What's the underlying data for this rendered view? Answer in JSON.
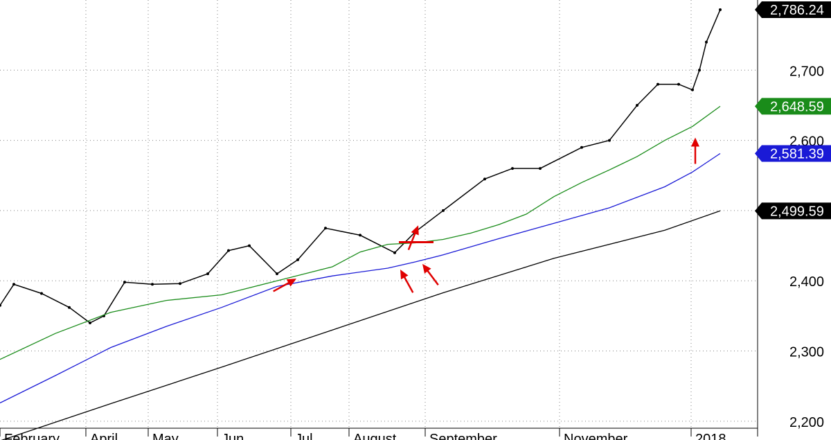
{
  "chart_data": {
    "type": "line",
    "title": "",
    "xlabel": "",
    "ylabel": "",
    "ylim": [
      2190,
      2800
    ],
    "y_ticks": [
      "2,200",
      "2,300",
      "2,400",
      "2,500",
      "2,600",
      "2,700"
    ],
    "y_tick_values": [
      2200,
      2300,
      2400,
      2500,
      2600,
      2700
    ],
    "x_month_labels": [
      "February",
      "April",
      "May",
      "Jun",
      "Jul",
      "August",
      "September",
      "November",
      "2018"
    ],
    "x_month_label_index": [
      0,
      62,
      107,
      157,
      210,
      252,
      307,
      404,
      499
    ],
    "month_separators_index": [
      62,
      107,
      157,
      210,
      252,
      307,
      404,
      499
    ],
    "grid": true,
    "colors": {
      "price_line": "#000000",
      "ma_green": "#1a8c1a",
      "ma_blue": "#1a1ad6",
      "ma_black": "#000000",
      "annotation": "#e00000",
      "grid": "#808080"
    },
    "last_value_labels": [
      {
        "text": "2,786.24",
        "value": 2786.24,
        "bg": "#000000"
      },
      {
        "text": "2,648.59",
        "value": 2648.59,
        "bg": "#1a8c1a"
      },
      {
        "text": "2,581.39",
        "value": 2581.39,
        "bg": "#1a1ad6"
      },
      {
        "text": "2,499.59",
        "value": 2499.59,
        "bg": "#000000"
      }
    ],
    "series": [
      {
        "key": "price",
        "x": [
          0,
          10,
          30,
          50,
          65,
          75,
          90,
          110,
          130,
          150,
          165,
          180,
          200,
          215,
          235,
          260,
          285,
          300,
          320,
          350,
          370,
          390,
          420,
          440,
          460,
          475,
          490,
          500,
          505,
          510,
          520
        ],
        "values": [
          2365,
          2395,
          2382,
          2362,
          2340,
          2350,
          2398,
          2395,
          2396,
          2410,
          2443,
          2450,
          2410,
          2430,
          2475,
          2465,
          2440,
          2470,
          2500,
          2545,
          2560,
          2560,
          2590,
          2600,
          2650,
          2680,
          2680,
          2672,
          2700,
          2740,
          2786.24
        ]
      },
      {
        "key": "ma_green",
        "x": [
          0,
          40,
          80,
          120,
          160,
          200,
          240,
          260,
          280,
          300,
          320,
          340,
          360,
          380,
          400,
          420,
          440,
          460,
          480,
          500,
          520
        ],
        "values": [
          2288,
          2325,
          2355,
          2372,
          2380,
          2400,
          2420,
          2441,
          2452,
          2454,
          2459,
          2468,
          2480,
          2495,
          2520,
          2540,
          2558,
          2577,
          2600,
          2620,
          2648.59
        ]
      },
      {
        "key": "ma_blue",
        "x": [
          0,
          40,
          80,
          120,
          160,
          200,
          240,
          280,
          300,
          320,
          360,
          400,
          440,
          480,
          500,
          520
        ],
        "values": [
          2226,
          2265,
          2305,
          2335,
          2362,
          2392,
          2407,
          2418,
          2427,
          2437,
          2460,
          2482,
          2504,
          2534,
          2555,
          2581.39
        ]
      },
      {
        "key": "ma_black",
        "x": [
          0,
          80,
          160,
          240,
          320,
          400,
          480,
          520
        ],
        "values": [
          2172,
          2225,
          2277,
          2330,
          2383,
          2432,
          2472,
          2499.59
        ]
      }
    ],
    "annotations": {
      "support_arrows": [
        {
          "x": 214,
          "value": 2407
        },
        {
          "x": 289,
          "value": 2420
        },
        {
          "x": 305,
          "value": 2428
        },
        {
          "x": 502,
          "value": 2608
        }
      ],
      "breakout_level": {
        "x_start": 288,
        "x_end": 313,
        "value": 2455
      },
      "breakout_arrow": {
        "x": 302,
        "value": 2475
      }
    }
  }
}
